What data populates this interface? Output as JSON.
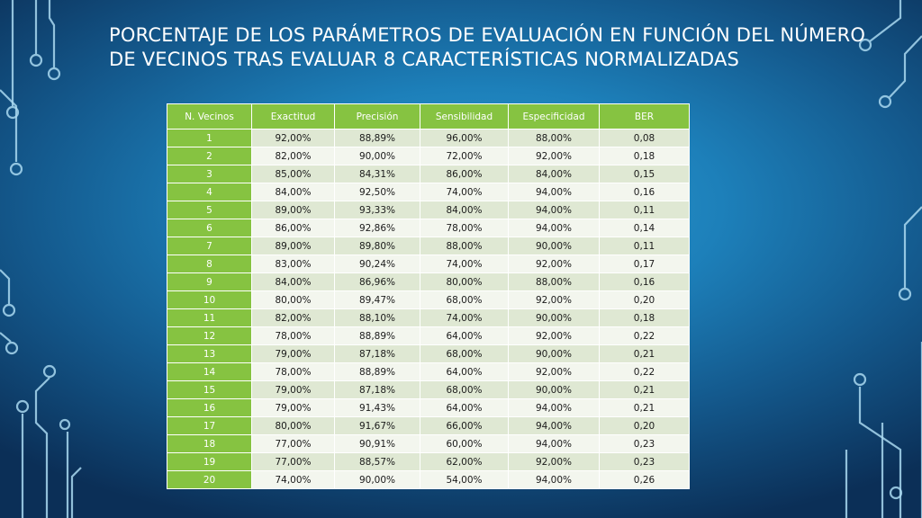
{
  "title": "Porcentaje de los parámetros de evaluación en función del número de vecinos tras evaluar 8 características normalizadas",
  "table": {
    "headers": [
      "N. Vecinos",
      "Exactitud",
      "Precisión",
      "Sensibilidad",
      "Especificidad",
      "BER"
    ],
    "rows": [
      [
        "1",
        "92,00%",
        "88,89%",
        "96,00%",
        "88,00%",
        "0,08"
      ],
      [
        "2",
        "82,00%",
        "90,00%",
        "72,00%",
        "92,00%",
        "0,18"
      ],
      [
        "3",
        "85,00%",
        "84,31%",
        "86,00%",
        "84,00%",
        "0,15"
      ],
      [
        "4",
        "84,00%",
        "92,50%",
        "74,00%",
        "94,00%",
        "0,16"
      ],
      [
        "5",
        "89,00%",
        "93,33%",
        "84,00%",
        "94,00%",
        "0,11"
      ],
      [
        "6",
        "86,00%",
        "92,86%",
        "78,00%",
        "94,00%",
        "0,14"
      ],
      [
        "7",
        "89,00%",
        "89,80%",
        "88,00%",
        "90,00%",
        "0,11"
      ],
      [
        "8",
        "83,00%",
        "90,24%",
        "74,00%",
        "92,00%",
        "0,17"
      ],
      [
        "9",
        "84,00%",
        "86,96%",
        "80,00%",
        "88,00%",
        "0,16"
      ],
      [
        "10",
        "80,00%",
        "89,47%",
        "68,00%",
        "92,00%",
        "0,20"
      ],
      [
        "11",
        "82,00%",
        "88,10%",
        "74,00%",
        "90,00%",
        "0,18"
      ],
      [
        "12",
        "78,00%",
        "88,89%",
        "64,00%",
        "92,00%",
        "0,22"
      ],
      [
        "13",
        "79,00%",
        "87,18%",
        "68,00%",
        "90,00%",
        "0,21"
      ],
      [
        "14",
        "78,00%",
        "88,89%",
        "64,00%",
        "92,00%",
        "0,22"
      ],
      [
        "15",
        "79,00%",
        "87,18%",
        "68,00%",
        "90,00%",
        "0,21"
      ],
      [
        "16",
        "79,00%",
        "91,43%",
        "64,00%",
        "94,00%",
        "0,21"
      ],
      [
        "17",
        "80,00%",
        "91,67%",
        "66,00%",
        "94,00%",
        "0,20"
      ],
      [
        "18",
        "77,00%",
        "90,91%",
        "60,00%",
        "94,00%",
        "0,23"
      ],
      [
        "19",
        "77,00%",
        "88,57%",
        "62,00%",
        "92,00%",
        "0,23"
      ],
      [
        "20",
        "74,00%",
        "90,00%",
        "54,00%",
        "94,00%",
        "0,26"
      ]
    ]
  },
  "colors": {
    "header_bg": "#86c341",
    "row_light": "#f3f6ee",
    "row_dark": "#dfe8d3",
    "background": "#1d80ba"
  }
}
